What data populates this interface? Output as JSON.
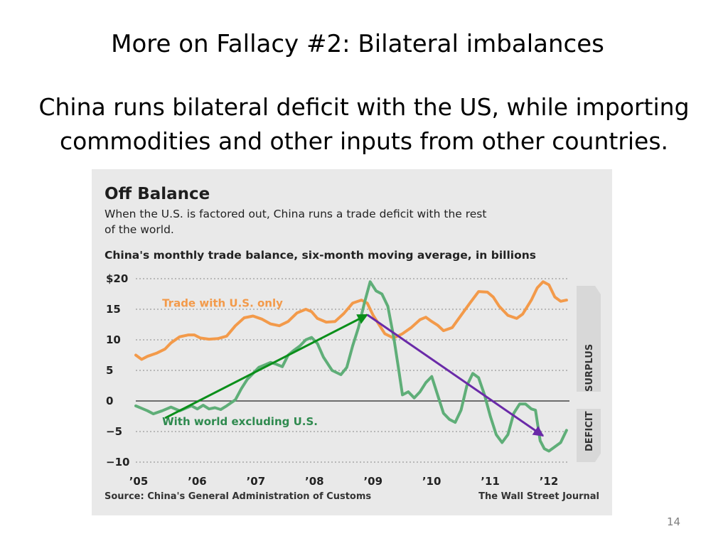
{
  "slide": {
    "title": "More on Fallacy #2:  Bilateral imbalances",
    "subtitle_lines": [
      "China runs bilateral deficit with the US, while importing",
      "commodities and other inputs from other countries."
    ],
    "page_number": "14"
  },
  "chart_data": {
    "type": "line",
    "title": "Off Balance",
    "subtitle": "When the U.S. is factored out, China runs a trade deficit with the rest of the world.",
    "subtitle_lines": [
      "When the U.S. is factored out, China runs a trade deficit with the rest",
      "of the world."
    ],
    "ylabel": "China's monthly trade balance, six-month moving average, in billions",
    "ylim": [
      -10,
      20
    ],
    "yticks": [
      20,
      15,
      10,
      5,
      0,
      -5,
      -10
    ],
    "ytick_labels": [
      "$20",
      "15",
      "10",
      "5",
      "0",
      "−5",
      "−10"
    ],
    "x_range": [
      2005.0,
      2012.4
    ],
    "xticks": [
      2005,
      2006,
      2007,
      2008,
      2009,
      2010,
      2011,
      2012
    ],
    "xtick_labels": [
      "’05",
      "’06",
      "’07",
      "’08",
      "’09",
      "’10",
      "’11",
      "’12"
    ],
    "grid": true,
    "zero_line": true,
    "band_labels": {
      "surplus": "SURPLUS",
      "deficit": "DEFICIT"
    },
    "series": [
      {
        "name": "Trade with U.S. only",
        "color": "#f39a4a",
        "x": [
          2005.0,
          2005.1,
          2005.2,
          2005.35,
          2005.5,
          2005.6,
          2005.75,
          2005.9,
          2006.0,
          2006.1,
          2006.25,
          2006.4,
          2006.55,
          2006.7,
          2006.85,
          2007.0,
          2007.15,
          2007.3,
          2007.45,
          2007.6,
          2007.75,
          2007.9,
          2008.0,
          2008.1,
          2008.25,
          2008.4,
          2008.55,
          2008.7,
          2008.85,
          2008.95,
          2009.05,
          2009.15,
          2009.25,
          2009.4,
          2009.55,
          2009.7,
          2009.85,
          2009.95,
          2010.05,
          2010.15,
          2010.25,
          2010.4,
          2010.55,
          2010.7,
          2010.85,
          2011.0,
          2011.1,
          2011.2,
          2011.35,
          2011.5,
          2011.6,
          2011.75,
          2011.85,
          2011.95,
          2012.05,
          2012.15,
          2012.25,
          2012.35
        ],
        "values": [
          7.5,
          6.8,
          7.3,
          7.8,
          8.5,
          9.5,
          10.5,
          10.8,
          10.8,
          10.3,
          10.1,
          10.2,
          10.6,
          12.3,
          13.6,
          13.9,
          13.4,
          12.6,
          12.3,
          13.0,
          14.4,
          15.0,
          14.6,
          13.5,
          12.9,
          13.0,
          14.3,
          16.0,
          16.5,
          16.0,
          14.0,
          12.5,
          11.0,
          10.3,
          11.0,
          12.0,
          13.3,
          13.7,
          13.0,
          12.4,
          11.5,
          12.0,
          14.0,
          16.0,
          17.9,
          17.8,
          17.0,
          15.5,
          14.0,
          13.5,
          14.2,
          16.5,
          18.5,
          19.5,
          19.0,
          17.0,
          16.3,
          16.5
        ]
      },
      {
        "name": "With world excluding U.S.",
        "color": "#5fae78",
        "x": [
          2005.0,
          2005.1,
          2005.2,
          2005.3,
          2005.45,
          2005.6,
          2005.75,
          2005.85,
          2005.95,
          2006.05,
          2006.15,
          2006.25,
          2006.35,
          2006.45,
          2006.55,
          2006.7,
          2006.8,
          2006.9,
          2007.0,
          2007.1,
          2007.2,
          2007.3,
          2007.4,
          2007.5,
          2007.6,
          2007.7,
          2007.8,
          2007.9,
          2008.0,
          2008.1,
          2008.2,
          2008.35,
          2008.5,
          2008.6,
          2008.7,
          2008.8,
          2008.9,
          2009.0,
          2009.1,
          2009.2,
          2009.3,
          2009.4,
          2009.48,
          2009.55,
          2009.65,
          2009.75,
          2009.85,
          2009.95,
          2010.05,
          2010.15,
          2010.25,
          2010.35,
          2010.45,
          2010.55,
          2010.65,
          2010.75,
          2010.85,
          2010.95,
          2011.05,
          2011.15,
          2011.25,
          2011.35,
          2011.45,
          2011.55,
          2011.65,
          2011.75,
          2011.82,
          2011.9,
          2011.97,
          2012.05,
          2012.15,
          2012.25,
          2012.35
        ],
        "values": [
          -0.8,
          -1.2,
          -1.6,
          -2.1,
          -1.6,
          -1.0,
          -1.6,
          -1.2,
          -0.8,
          -1.3,
          -0.7,
          -1.3,
          -1.1,
          -1.4,
          -0.8,
          0.2,
          2.0,
          3.5,
          4.5,
          5.5,
          5.9,
          6.3,
          6.0,
          5.6,
          7.5,
          8.3,
          9.0,
          10.0,
          10.4,
          9.4,
          7.2,
          5.0,
          4.3,
          5.5,
          9.0,
          12.0,
          16.0,
          19.5,
          18.0,
          17.5,
          15.5,
          10.5,
          5.5,
          1.0,
          1.5,
          0.5,
          1.5,
          3.0,
          4.0,
          1.0,
          -2.0,
          -3.0,
          -3.5,
          -1.5,
          2.5,
          4.5,
          3.8,
          1.0,
          -2.5,
          -5.5,
          -6.8,
          -5.5,
          -2.0,
          -0.5,
          -0.5,
          -1.3,
          -1.5,
          -6.5,
          -7.8,
          -8.2,
          -7.5,
          -6.8,
          -4.8
        ]
      }
    ],
    "series_label_positions": {
      "us_only": [
        2005.45,
        16.0
      ],
      "world_ex_us": [
        2005.45,
        -3.4
      ]
    },
    "annotations": [
      {
        "type": "arrow",
        "color": "#0a8f1a",
        "from": [
          2005.5,
          -2.8
        ],
        "to": [
          2008.95,
          14.1
        ]
      },
      {
        "type": "arrow",
        "color": "#6a2aa8",
        "from": [
          2008.95,
          14.1
        ],
        "to": [
          2011.95,
          -5.7
        ]
      }
    ],
    "source": "Source: China's General Administration of Customs",
    "publisher": "The Wall Street Journal"
  }
}
